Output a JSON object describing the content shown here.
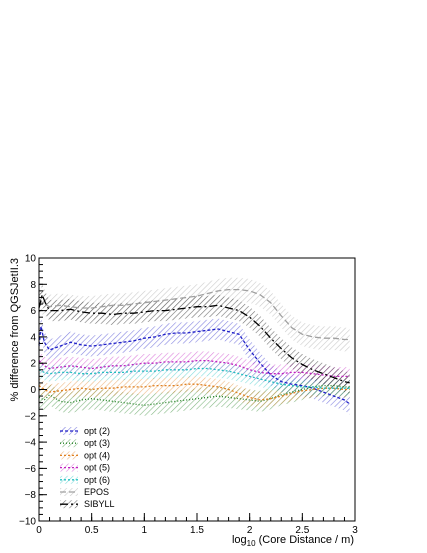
{
  "chart_data": {
    "type": "line",
    "title": "",
    "xlabel": "log",
    "xlabel_sub": "10",
    "xlabel_rest": " (Core Distance / m)",
    "ylabel": "% difference from QGSJetII.3",
    "xlim": [
      0,
      3
    ],
    "ylim": [
      -10,
      10
    ],
    "x_ticks": [
      0,
      0.5,
      1,
      1.5,
      2,
      2.5,
      3
    ],
    "x_tick_labels": [
      "0",
      "0.5",
      "1",
      "1.5",
      "2",
      "2.5",
      "3"
    ],
    "y_ticks": [
      -10,
      -8,
      -6,
      -4,
      -2,
      0,
      2,
      4,
      6,
      8,
      10
    ],
    "y_tick_labels": [
      "−10",
      "−8",
      "−6",
      "−4",
      "−2",
      "0",
      "2",
      "4",
      "6",
      "8",
      "10"
    ],
    "legend_position": "bottom-left",
    "grid": false,
    "series": [
      {
        "name": "opt (2)",
        "color": "#2020c8",
        "dash": "3,2",
        "band": 0.8,
        "x": [
          0,
          0.02,
          0.05,
          0.1,
          0.2,
          0.3,
          0.4,
          0.5,
          0.6,
          0.7,
          0.8,
          0.9,
          1.0,
          1.1,
          1.2,
          1.3,
          1.4,
          1.5,
          1.6,
          1.7,
          1.8,
          1.9,
          2.0,
          2.1,
          2.2,
          2.3,
          2.4,
          2.5,
          2.6,
          2.7,
          2.8,
          2.9,
          2.95
        ],
        "y": [
          3.4,
          4.8,
          3.6,
          3.0,
          3.3,
          3.6,
          3.4,
          3.3,
          3.4,
          3.5,
          3.6,
          3.7,
          3.9,
          4.0,
          4.2,
          4.3,
          4.3,
          4.4,
          4.5,
          4.6,
          4.4,
          4.2,
          3.0,
          2.0,
          1.1,
          0.6,
          0.4,
          0.3,
          0.1,
          -0.2,
          -0.5,
          -0.8,
          -1.1
        ]
      },
      {
        "name": "opt (3)",
        "color": "#208020",
        "dash": "1,2",
        "band": 0.8,
        "x": [
          0,
          0.05,
          0.1,
          0.2,
          0.3,
          0.4,
          0.5,
          0.6,
          0.7,
          0.8,
          0.9,
          1.0,
          1.1,
          1.2,
          1.3,
          1.4,
          1.5,
          1.6,
          1.7,
          1.8,
          1.9,
          2.0,
          2.1,
          2.2,
          2.3,
          2.4,
          2.5,
          2.6,
          2.7,
          2.8,
          2.9,
          2.95
        ],
        "y": [
          -0.6,
          -0.8,
          -0.4,
          -0.9,
          -1.0,
          -0.8,
          -0.7,
          -0.8,
          -0.9,
          -1.0,
          -1.1,
          -1.2,
          -1.1,
          -1.0,
          -0.9,
          -0.8,
          -0.7,
          -0.6,
          -0.5,
          -0.6,
          -0.7,
          -0.8,
          -0.9,
          -0.7,
          -0.4,
          -0.2,
          0.0,
          0.2,
          0.3,
          0.3,
          0.2,
          0.2
        ]
      },
      {
        "name": "opt (4)",
        "color": "#e08020",
        "dash": "2,2",
        "band": 0.6,
        "x": [
          0,
          0.05,
          0.1,
          0.2,
          0.3,
          0.4,
          0.5,
          0.6,
          0.7,
          0.8,
          0.9,
          1.0,
          1.1,
          1.2,
          1.3,
          1.4,
          1.5,
          1.6,
          1.7,
          1.8,
          1.9,
          2.0,
          2.1,
          2.2,
          2.3,
          2.4,
          2.5,
          2.6,
          2.7,
          2.8,
          2.9,
          2.95
        ],
        "y": [
          0.3,
          0.0,
          -0.2,
          -0.1,
          0.0,
          0.1,
          0.0,
          0.1,
          0.1,
          0.2,
          0.2,
          0.2,
          0.3,
          0.3,
          0.3,
          0.4,
          0.4,
          0.3,
          0.2,
          0.0,
          -0.3,
          -0.6,
          -0.8,
          -0.7,
          -0.5,
          -0.3,
          -0.1,
          0.0,
          0.1,
          0.1,
          0.0,
          0.0
        ]
      },
      {
        "name": "opt (5)",
        "color": "#c020c0",
        "dash": "2,2",
        "band": 0.7,
        "x": [
          0,
          0.05,
          0.1,
          0.2,
          0.3,
          0.4,
          0.5,
          0.6,
          0.7,
          0.8,
          0.9,
          1.0,
          1.1,
          1.2,
          1.3,
          1.4,
          1.5,
          1.6,
          1.7,
          1.8,
          1.9,
          2.0,
          2.1,
          2.2,
          2.3,
          2.4,
          2.5,
          2.6,
          2.7,
          2.8,
          2.9,
          2.95
        ],
        "y": [
          2.2,
          1.8,
          1.6,
          1.7,
          1.8,
          1.7,
          1.6,
          1.7,
          1.8,
          1.8,
          1.9,
          2.0,
          2.0,
          2.1,
          2.1,
          2.1,
          2.2,
          2.2,
          2.1,
          2.0,
          1.8,
          1.5,
          1.3,
          1.2,
          1.2,
          1.3,
          1.3,
          1.2,
          1.1,
          1.0,
          1.0,
          1.0
        ]
      },
      {
        "name": "opt (6)",
        "color": "#20c0c0",
        "dash": "2,2",
        "band": 0.6,
        "x": [
          0,
          0.05,
          0.1,
          0.2,
          0.3,
          0.4,
          0.5,
          0.6,
          0.7,
          0.8,
          0.9,
          1.0,
          1.1,
          1.2,
          1.3,
          1.4,
          1.5,
          1.6,
          1.7,
          1.8,
          1.9,
          2.0,
          2.1,
          2.2,
          2.3,
          2.4,
          2.5,
          2.6,
          2.7,
          2.8,
          2.9,
          2.95
        ],
        "y": [
          1.5,
          1.3,
          1.2,
          1.3,
          1.3,
          1.2,
          1.2,
          1.3,
          1.3,
          1.3,
          1.4,
          1.4,
          1.4,
          1.5,
          1.5,
          1.5,
          1.6,
          1.6,
          1.5,
          1.4,
          1.2,
          1.0,
          0.8,
          0.6,
          0.4,
          0.3,
          0.2,
          0.2,
          0.1,
          0.1,
          0.1,
          0.1
        ]
      },
      {
        "name": "EPOS",
        "color": "#a0a0a0",
        "dash": "6,3",
        "band": 0.9,
        "x": [
          0,
          0.05,
          0.1,
          0.2,
          0.3,
          0.4,
          0.5,
          0.6,
          0.7,
          0.8,
          0.9,
          1.0,
          1.1,
          1.2,
          1.3,
          1.4,
          1.5,
          1.6,
          1.7,
          1.8,
          1.9,
          2.0,
          2.1,
          2.2,
          2.3,
          2.4,
          2.5,
          2.6,
          2.7,
          2.8,
          2.9,
          2.95
        ],
        "y": [
          6.8,
          6.5,
          6.3,
          6.4,
          6.3,
          6.2,
          6.2,
          6.3,
          6.4,
          6.4,
          6.5,
          6.6,
          6.7,
          6.8,
          6.9,
          7.0,
          7.1,
          7.3,
          7.5,
          7.6,
          7.6,
          7.5,
          7.2,
          6.6,
          5.6,
          4.7,
          4.2,
          4.0,
          3.9,
          3.9,
          3.8,
          3.8
        ]
      },
      {
        "name": "SIBYLL",
        "color": "#000000",
        "dash": "8,3,2,3",
        "band": 0.8,
        "x": [
          0,
          0.03,
          0.06,
          0.1,
          0.2,
          0.3,
          0.4,
          0.5,
          0.6,
          0.7,
          0.8,
          0.9,
          1.0,
          1.1,
          1.2,
          1.3,
          1.4,
          1.5,
          1.6,
          1.7,
          1.8,
          1.9,
          2.0,
          2.1,
          2.2,
          2.3,
          2.4,
          2.5,
          2.6,
          2.7,
          2.8,
          2.9,
          2.95
        ],
        "y": [
          6.2,
          7.2,
          6.6,
          6.0,
          6.0,
          6.1,
          5.9,
          5.8,
          5.8,
          5.7,
          5.8,
          5.8,
          5.9,
          6.0,
          6.0,
          6.1,
          6.2,
          6.3,
          6.3,
          6.4,
          6.2,
          6.0,
          5.5,
          4.8,
          3.9,
          3.1,
          2.4,
          1.9,
          1.5,
          1.2,
          0.9,
          0.6,
          0.5
        ]
      }
    ]
  }
}
